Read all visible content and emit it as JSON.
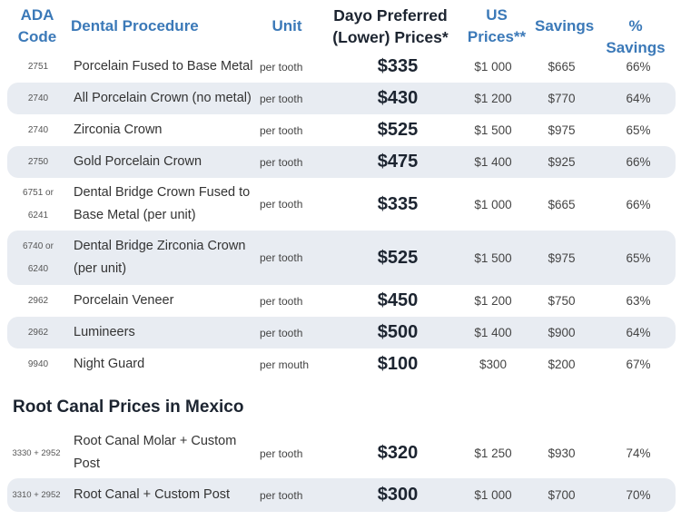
{
  "headers": {
    "ada_line1": "ADA",
    "ada_line2": "Code",
    "procedure": "Dental Procedure",
    "unit": "Unit",
    "dayo_line1": "Dayo Preferred",
    "dayo_line2": "(Lower) Prices*",
    "us_line1": "US",
    "us_line2": "Prices**",
    "savings": "Savings",
    "pct_savings": "% Savings"
  },
  "crowns": [
    {
      "code": "2751",
      "procedure": "Porcelain Fused to Base Metal",
      "unit": "per tooth",
      "dayo": "$335",
      "us": "$1 000",
      "savings": "$665",
      "pct": "66%"
    },
    {
      "code": "2740",
      "procedure": "All Porcelain Crown (no metal)",
      "unit": "per tooth",
      "dayo": "$430",
      "us": "$1 200",
      "savings": "$770",
      "pct": "64%"
    },
    {
      "code": "2740",
      "procedure": "Zirconia Crown",
      "unit": "per tooth",
      "dayo": "$525",
      "us": "$1 500",
      "savings": "$975",
      "pct": "65%"
    },
    {
      "code": "2750",
      "procedure": "Gold Porcelain Crown",
      "unit": "per tooth",
      "dayo": "$475",
      "us": "$1 400",
      "savings": "$925",
      "pct": "66%"
    },
    {
      "code_line1": "6751 or",
      "code_line2": "6241",
      "procedure_line1": "Dental Bridge Crown Fused to",
      "procedure_line2": "Base Metal (per unit)",
      "unit": "per tooth",
      "dayo": "$335",
      "us": "$1 000",
      "savings": "$665",
      "pct": "66%"
    },
    {
      "code_line1": "6740 or",
      "code_line2": "6240",
      "procedure_line1": "Dental Bridge Zirconia Crown",
      "procedure_line2": "(per unit)",
      "unit": "per tooth",
      "dayo": "$525",
      "us": "$1 500",
      "savings": "$975",
      "pct": "65%"
    },
    {
      "code": "2962",
      "procedure": "Porcelain Veneer",
      "unit": "per tooth",
      "dayo": "$450",
      "us": "$1 200",
      "savings": "$750",
      "pct": "63%"
    },
    {
      "code": "2962",
      "procedure": "Lumineers",
      "unit": "per tooth",
      "dayo": "$500",
      "us": "$1 400",
      "savings": "$900",
      "pct": "64%"
    },
    {
      "code": "9940",
      "procedure": "Night Guard",
      "unit": "per mouth",
      "dayo": "$100",
      "us": "$300",
      "savings": "$200",
      "pct": "67%"
    }
  ],
  "root_canal_section": {
    "title": "Root Canal Prices in Mexico",
    "rows": [
      {
        "code": "3330 + 2952",
        "procedure_line1": "Root Canal Molar + Custom",
        "procedure_line2": "Post",
        "unit": "per tooth",
        "dayo": "$320",
        "us": "$1 250",
        "savings": "$930",
        "pct": "74%"
      },
      {
        "code": "3310 + 2952",
        "procedure": "Root Canal + Custom Post",
        "unit": "per tooth",
        "dayo": "$300",
        "us": "$1 000",
        "savings": "$700",
        "pct": "70%"
      }
    ]
  }
}
